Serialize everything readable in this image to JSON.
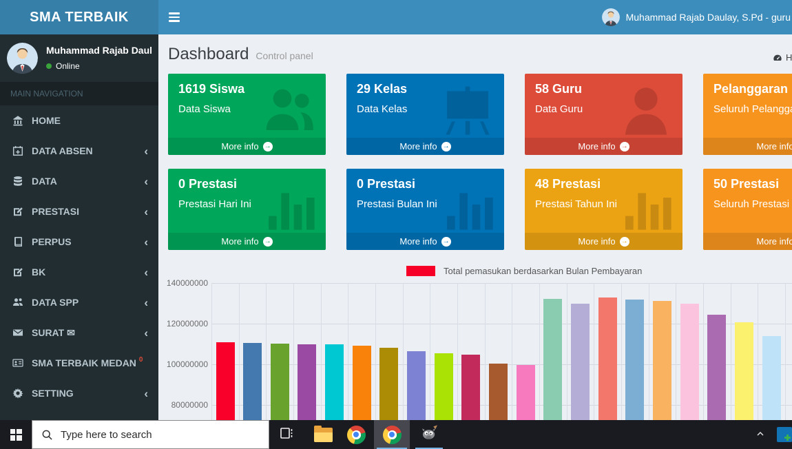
{
  "header": {
    "brand": "SMA TERBAIK",
    "user_name": "Muhammad Rajab Daulay, S.Pd - guru"
  },
  "sidebar": {
    "user": {
      "name": "Muhammad Rajab Daulay,",
      "status": "Online"
    },
    "section_label": "MAIN NAVIGATION",
    "items": [
      {
        "label": "HOME",
        "icon": "bank-icon",
        "arrow": false,
        "badge": ""
      },
      {
        "label": "DATA ABSEN",
        "icon": "calendar-plus-icon",
        "arrow": true,
        "badge": ""
      },
      {
        "label": "DATA",
        "icon": "database-icon",
        "arrow": true,
        "badge": ""
      },
      {
        "label": "PRESTASI",
        "icon": "pencil-square-icon",
        "arrow": true,
        "badge": ""
      },
      {
        "label": "PERPUS",
        "icon": "book-icon",
        "arrow": true,
        "badge": ""
      },
      {
        "label": "BK",
        "icon": "pencil-square-icon",
        "arrow": true,
        "badge": ""
      },
      {
        "label": "DATA SPP",
        "icon": "users-icon",
        "arrow": true,
        "badge": ""
      },
      {
        "label": "SURAT ✉",
        "icon": "envelope-icon",
        "arrow": true,
        "badge": ""
      },
      {
        "label": "SMA TERBAIK MEDAN",
        "icon": "id-card-icon",
        "arrow": false,
        "badge": "0"
      },
      {
        "label": "SETTING",
        "icon": "gear-icon",
        "arrow": true,
        "badge": ""
      }
    ]
  },
  "content": {
    "title": "Dashboard",
    "subtitle": "Control panel",
    "breadcrumb_label": "Home",
    "info_boxes": [
      {
        "number_label": "1619 Siswa",
        "desc": "Data Siswa",
        "more": "More info",
        "color": "#00a65a",
        "icon": "users-group-icon"
      },
      {
        "number_label": "29 Kelas",
        "desc": "Data Kelas",
        "more": "More info",
        "color": "#0073b7",
        "icon": "chalkboard-icon"
      },
      {
        "number_label": "58 Guru",
        "desc": "Data Guru",
        "more": "More info",
        "color": "#dd4b39",
        "icon": "person-icon"
      },
      {
        "number_label": "Pelanggaran",
        "desc": "Seluruh Pelanggaran",
        "more": "More info",
        "color": "#f7941e",
        "icon": "person-icon"
      },
      {
        "number_label": "0 Prestasi",
        "desc": "Prestasi Hari Ini",
        "more": "More info",
        "color": "#00a65a",
        "icon": "bar-chart-icon"
      },
      {
        "number_label": "0 Prestasi",
        "desc": "Prestasi Bulan Ini",
        "more": "More info",
        "color": "#0073b7",
        "icon": "bar-chart-icon"
      },
      {
        "number_label": "48 Prestasi",
        "desc": "Prestasi Tahun Ini",
        "more": "More info",
        "color": "#eca313",
        "icon": "bar-chart-icon"
      },
      {
        "number_label": "50 Prestasi",
        "desc": "Seluruh Prestasi",
        "more": "More info",
        "color": "#f7941e",
        "icon": "bar-chart-icon"
      }
    ]
  },
  "chart_data": {
    "type": "bar",
    "legend_label": "Total pemasukan berdasarkan Bulan Pembayaran",
    "legend_color": "#f60028",
    "yticks": [
      140000000,
      120000000,
      100000000,
      80000000
    ],
    "x_axis_labels_visible": false,
    "values": [
      111000000,
      110400000,
      110200000,
      110000000,
      109700000,
      109300000,
      108000000,
      106600000,
      105500000,
      104800000,
      100300000,
      99800000,
      132300000,
      129700000,
      133000000,
      131900000,
      131300000,
      129800000,
      124400000,
      120800000,
      113800000
    ],
    "colors": [
      "#f80029",
      "#4379ae",
      "#69a32e",
      "#9b4aa4",
      "#00c8d2",
      "#f9820a",
      "#ab8c04",
      "#7e82d2",
      "#aae206",
      "#c22a5c",
      "#a65a2e",
      "#f779be",
      "#8accb0",
      "#b4aed6",
      "#f4776c",
      "#7cadd2",
      "#f9b25f",
      "#fcc3de",
      "#aa6bb0",
      "#fcf16e",
      "#bee3f8"
    ]
  },
  "taskbar": {
    "search_placeholder": "Type here to search"
  }
}
